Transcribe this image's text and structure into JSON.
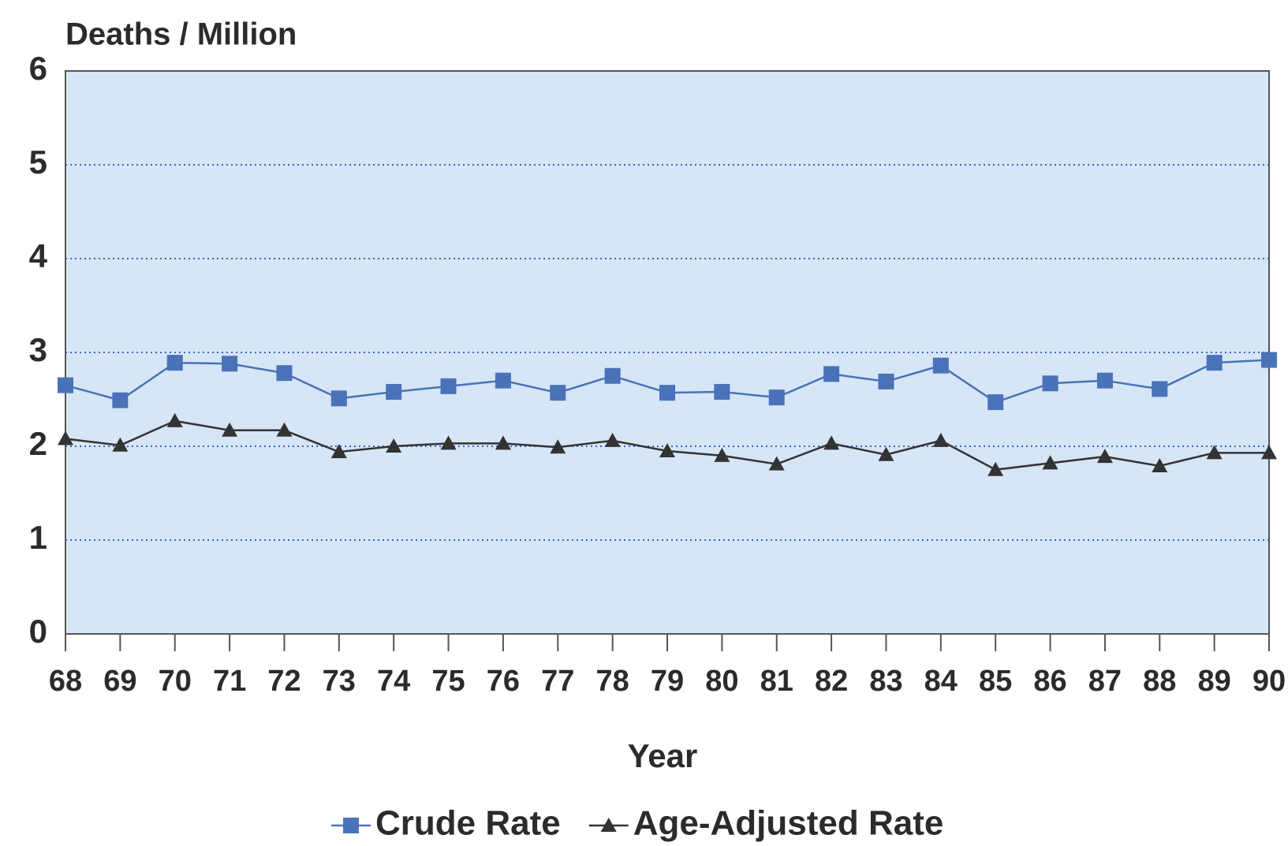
{
  "chart_data": {
    "type": "line",
    "title": "Deaths / Million",
    "x_label": "Year",
    "categories": [
      "68",
      "69",
      "70",
      "71",
      "72",
      "73",
      "74",
      "75",
      "76",
      "77",
      "78",
      "79",
      "80",
      "81",
      "82",
      "83",
      "84",
      "85",
      "86",
      "87",
      "88",
      "89",
      "90"
    ],
    "series": [
      {
        "name": "Crude Rate",
        "color": "#4a72b8",
        "marker": "square",
        "values": [
          2.65,
          2.49,
          2.89,
          2.88,
          2.78,
          2.51,
          2.58,
          2.64,
          2.7,
          2.57,
          2.75,
          2.57,
          2.58,
          2.52,
          2.77,
          2.69,
          2.86,
          2.47,
          2.67,
          2.7,
          2.61,
          2.89,
          2.92
        ]
      },
      {
        "name": "Age-Adjusted Rate",
        "color": "#333333",
        "marker": "triangle",
        "values": [
          2.08,
          2.01,
          2.27,
          2.17,
          2.17,
          1.94,
          2.0,
          2.03,
          2.03,
          1.99,
          2.06,
          1.95,
          1.9,
          1.81,
          2.03,
          1.91,
          2.06,
          1.75,
          1.82,
          1.89,
          1.79,
          1.93,
          1.93
        ]
      }
    ],
    "ylim": [
      0,
      6
    ],
    "yticks": [
      0,
      1,
      2,
      3,
      4,
      5,
      6
    ],
    "grid": true
  }
}
